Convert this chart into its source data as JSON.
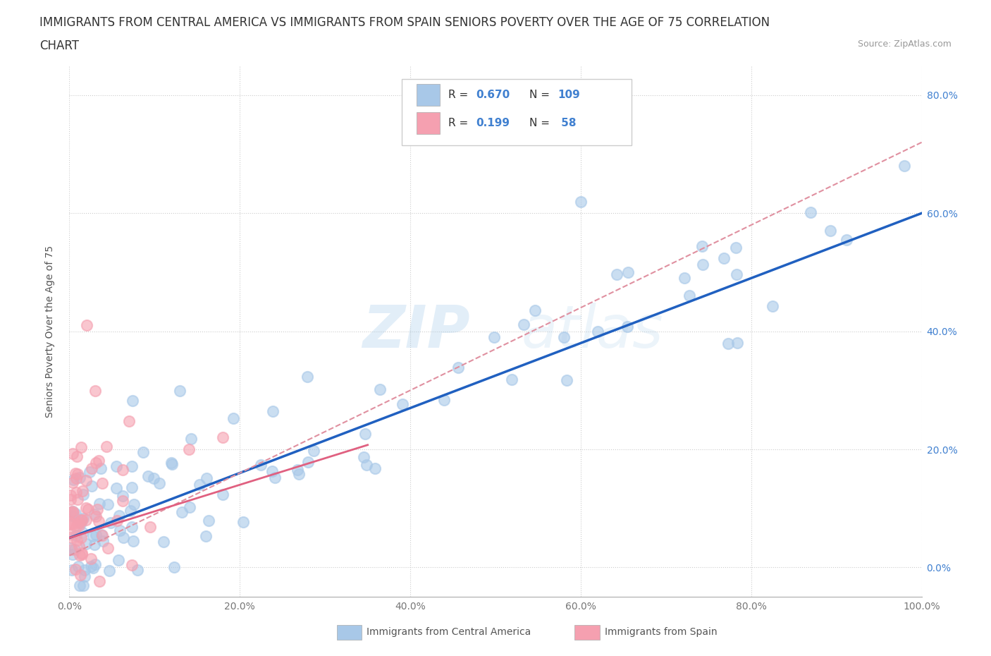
{
  "title_line1": "IMMIGRANTS FROM CENTRAL AMERICA VS IMMIGRANTS FROM SPAIN SENIORS POVERTY OVER THE AGE OF 75 CORRELATION",
  "title_line2": "CHART",
  "source_text": "Source: ZipAtlas.com",
  "ylabel": "Seniors Poverty Over the Age of 75",
  "watermark_zip": "ZIP",
  "watermark_atlas": "atlas",
  "legend_label_blue": "Immigrants from Central America",
  "legend_label_pink": "Immigrants from Spain",
  "R_blue": "0.670",
  "N_blue": "109",
  "R_pink": "0.199",
  "N_pink": "58",
  "blue_color": "#a8c8e8",
  "pink_color": "#f5a0b0",
  "trend_blue_color": "#2060c0",
  "trend_pink_color": "#e06080",
  "trend_dashed_color": "#e090a0",
  "right_tick_color": "#4080d0",
  "xlim": [
    0.0,
    1.0
  ],
  "ylim": [
    -0.05,
    0.85
  ],
  "xticks": [
    0.0,
    0.2,
    0.4,
    0.6,
    0.8,
    1.0
  ],
  "yticks": [
    0.0,
    0.2,
    0.4,
    0.6,
    0.8
  ],
  "xtick_labels": [
    "0.0%",
    "20.0%",
    "40.0%",
    "60.0%",
    "80.0%",
    "100.0%"
  ],
  "ytick_labels": [
    "0.0%",
    "20.0%",
    "40.0%",
    "60.0%",
    "80.0%"
  ],
  "title_fontsize": 12,
  "axis_label_fontsize": 10,
  "tick_fontsize": 10,
  "background_color": "#ffffff",
  "grid_color": "#cccccc",
  "b_slope": 0.55,
  "b_intercept": 0.05,
  "p_slope": 0.7,
  "p_intercept": 0.02
}
